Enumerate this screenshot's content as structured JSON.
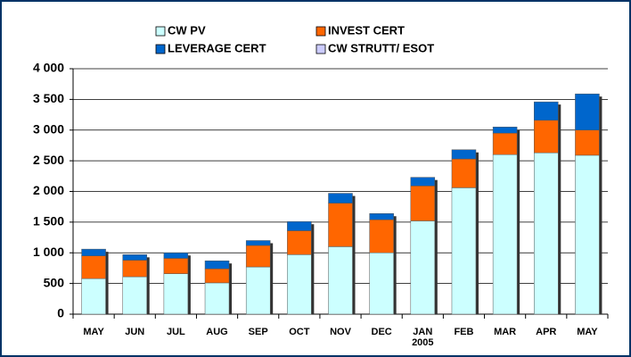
{
  "chart_data": {
    "type": "stacked_bar",
    "categories": [
      "MAY",
      "JUN",
      "JUL",
      "AUG",
      "SEP",
      "OCT",
      "NOV",
      "DEC",
      "JAN\n2005",
      "FEB",
      "MAR",
      "APR",
      "MAY"
    ],
    "series": [
      {
        "name": "CW PV",
        "color": "#ccffff",
        "values": [
          580,
          610,
          660,
          510,
          770,
          970,
          1100,
          1000,
          1520,
          2060,
          2600,
          2630,
          2590
        ]
      },
      {
        "name": "INVEST CERT",
        "color": "#ff6600",
        "values": [
          370,
          270,
          250,
          230,
          350,
          390,
          710,
          540,
          570,
          470,
          350,
          530,
          410
        ]
      },
      {
        "name": "LEVERAGE CERT",
        "color": "#0066cc",
        "values": [
          110,
          90,
          90,
          130,
          80,
          150,
          160,
          100,
          140,
          150,
          100,
          300,
          590
        ]
      },
      {
        "name": "CW STRUTT/ ESOT",
        "color": "#ccccff",
        "values": [
          0,
          0,
          0,
          0,
          0,
          0,
          0,
          0,
          0,
          0,
          0,
          0,
          0
        ]
      }
    ],
    "ylim": [
      0,
      4000
    ],
    "yticks": [
      0,
      {
        "value": 500,
        "label": "500"
      },
      {
        "value": 1000,
        "label": "1 000"
      },
      {
        "value": 1500,
        "label": "1 500"
      },
      {
        "value": 2000,
        "label": "2 000"
      },
      {
        "value": 2500,
        "label": "2 500"
      },
      {
        "value": 3000,
        "label": "3 000"
      },
      {
        "value": 3500,
        "label": "3 500"
      },
      {
        "value": 4000,
        "label": "4 000"
      }
    ],
    "grid": true,
    "legend": "top"
  }
}
